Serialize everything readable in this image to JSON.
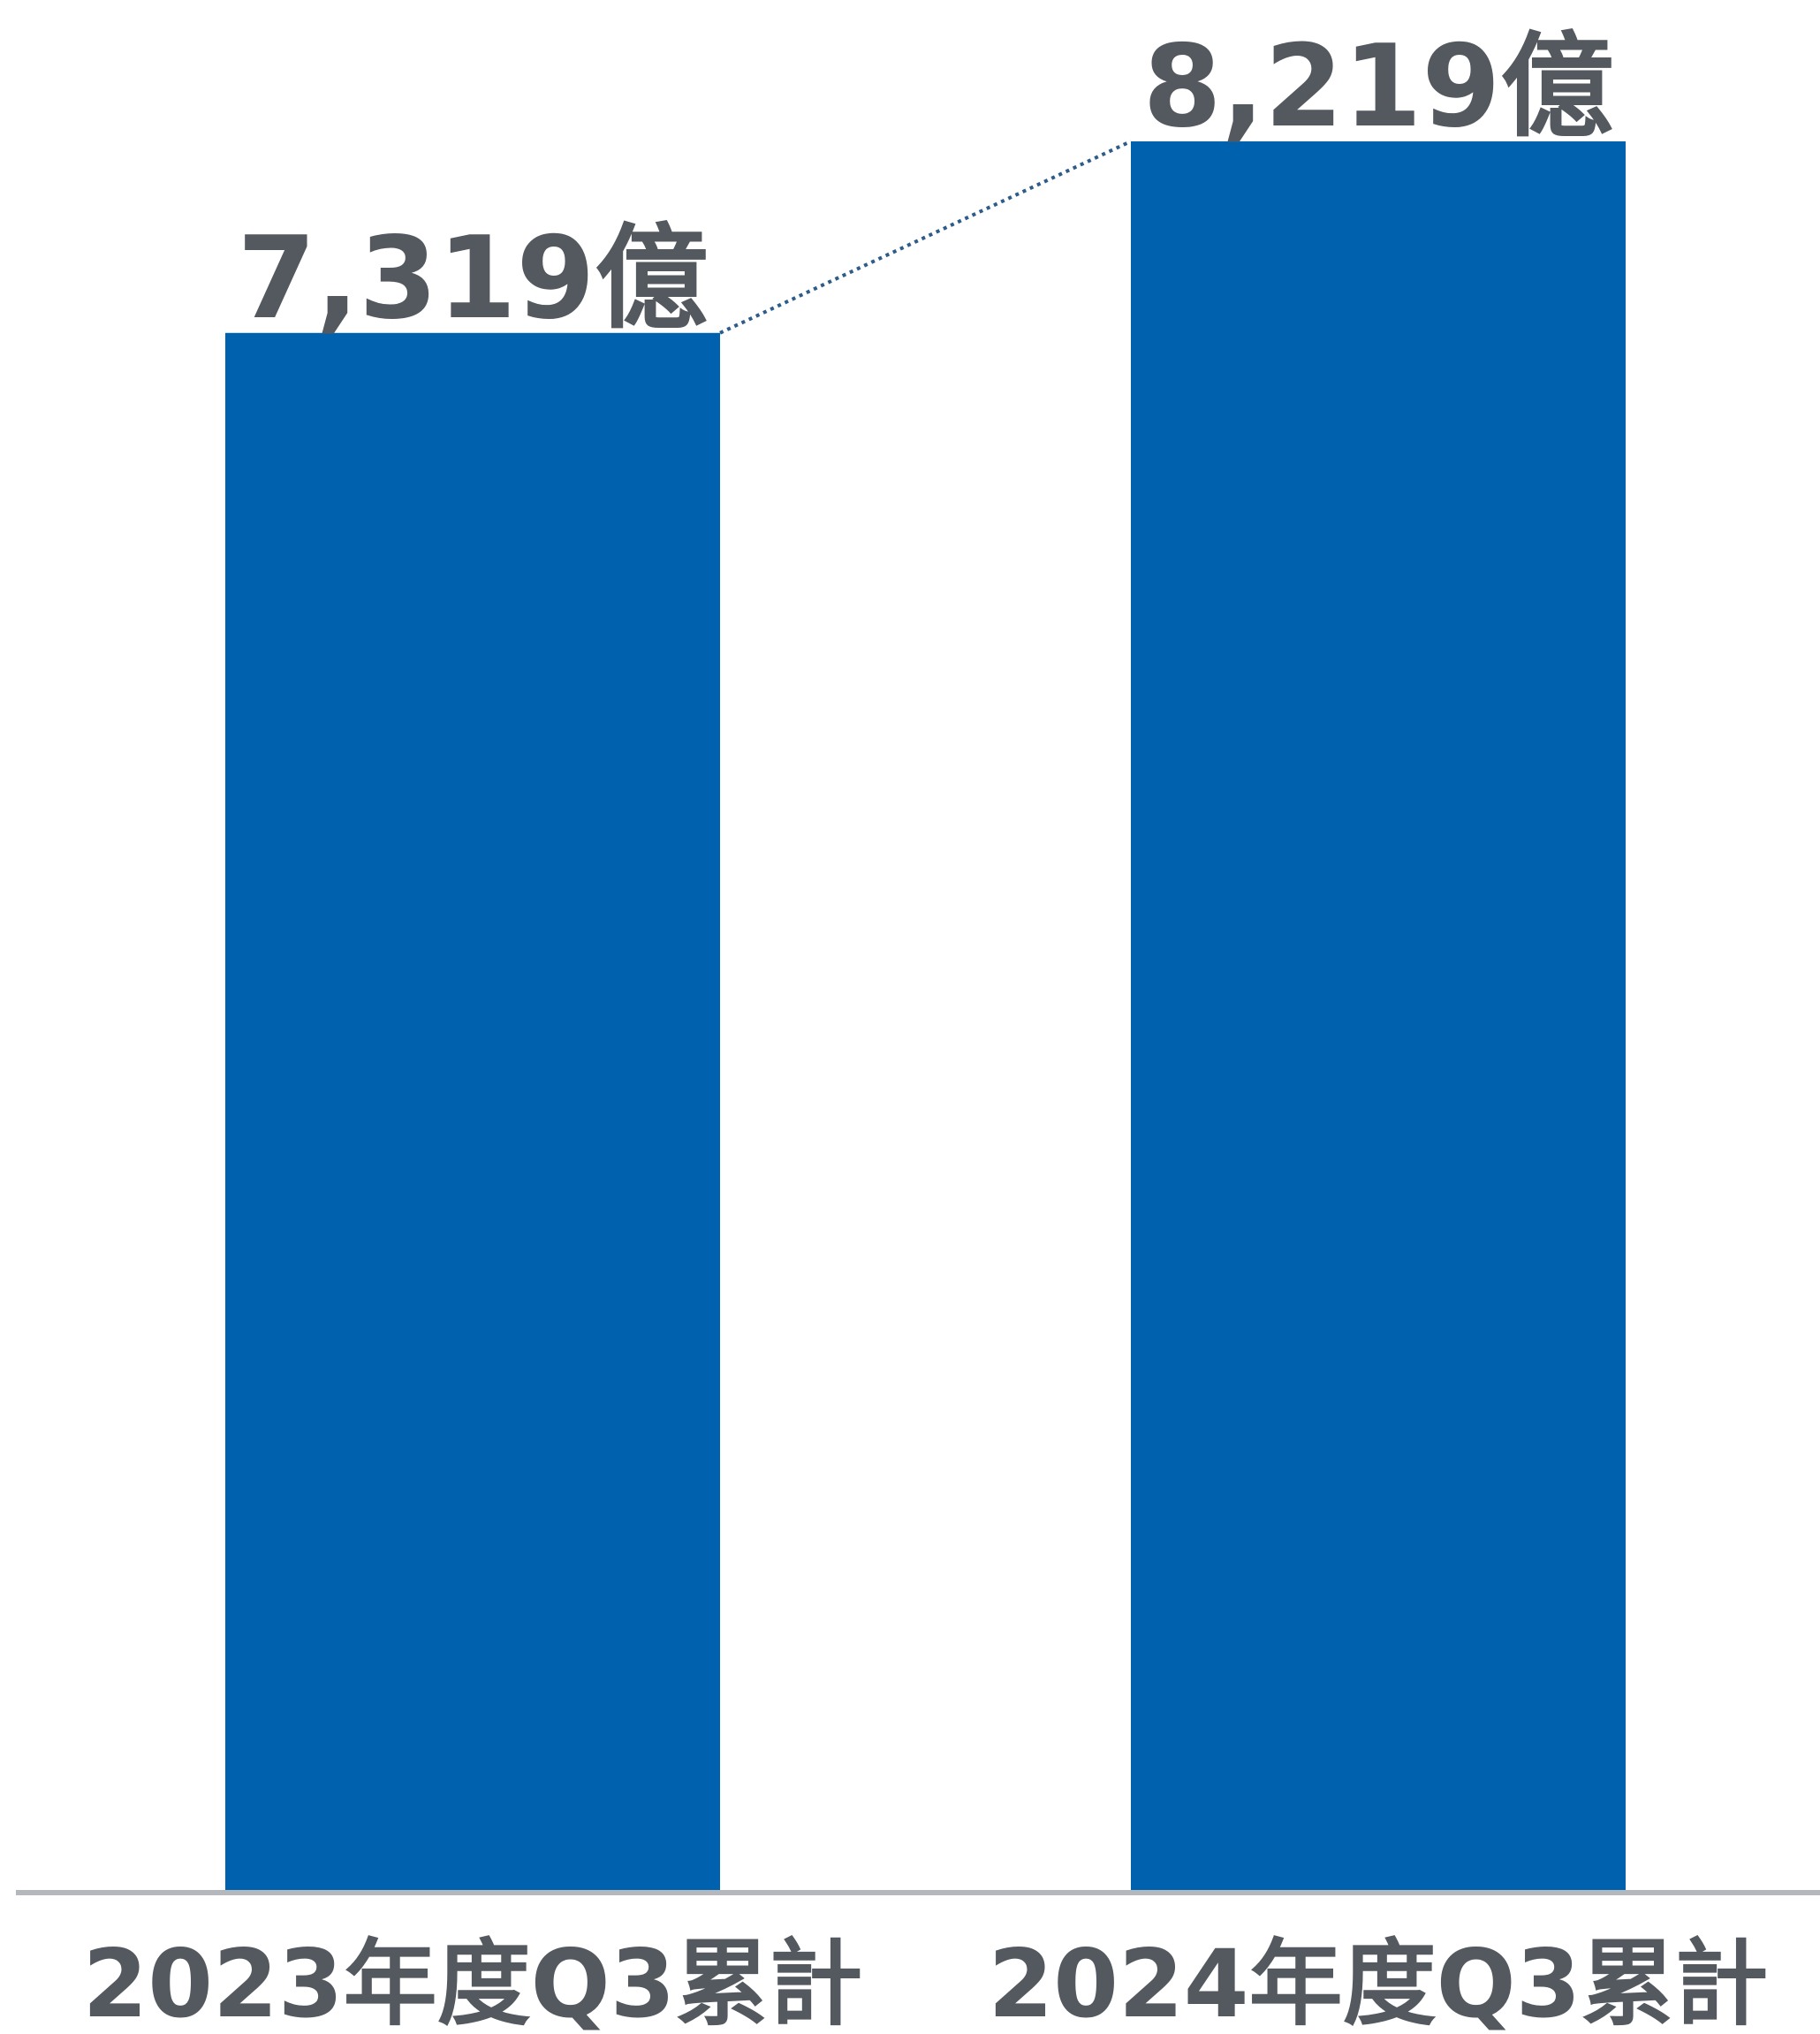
{
  "chart_data": {
    "type": "bar",
    "title": "",
    "xlabel": "",
    "ylabel": "",
    "categories": [
      "2023年度Q3累計",
      "2024年度Q3累計"
    ],
    "values": [
      7319,
      8219
    ],
    "value_labels": [
      "7,319億",
      "8,219億"
    ],
    "ylim": [
      0,
      8800
    ],
    "grid": false,
    "legend": "none",
    "connector": "dotted line joining the tops of the two bars"
  },
  "colors": {
    "bar": "#0062AF",
    "text": "#545960",
    "baseline": "#B4B7BB",
    "connector": "#2E5C8A"
  }
}
